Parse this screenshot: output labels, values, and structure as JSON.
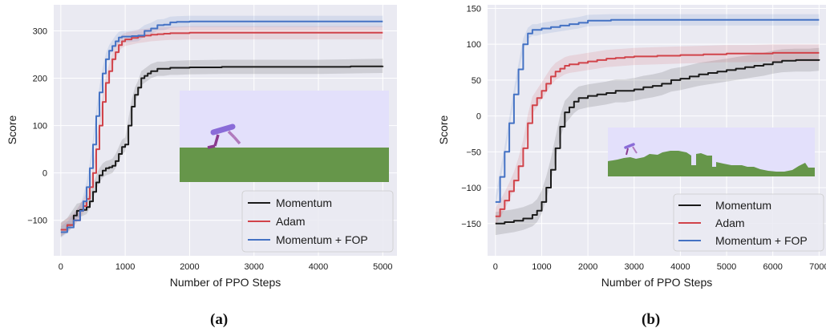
{
  "captions": {
    "a": "(a)",
    "b": "(b)"
  },
  "colors": {
    "plot_bg": "#eaeaf2",
    "grid": "#ffffff",
    "Momentum": "#1a1a1a",
    "Adam": "#d1434a",
    "Momentum + FOP": "#4472c4",
    "sky": "#e3e0fb",
    "ground": "#66964a",
    "walker_light": "#8a6cd8",
    "walker_dark": "#8a3a8e"
  },
  "chart_data": [
    {
      "id": "a",
      "type": "line",
      "title": "",
      "xlabel": "Number of PPO Steps",
      "ylabel": "Score",
      "xlim": [
        -110,
        5220
      ],
      "ylim": [
        -175,
        355
      ],
      "xticks": [
        0,
        1000,
        2000,
        3000,
        4000,
        5000
      ],
      "yticks": [
        -100,
        0,
        100,
        200,
        300
      ],
      "grid": true,
      "legend": "bottom-right",
      "inset": "bipedal walker on flat green terrain",
      "series": [
        {
          "name": "Momentum",
          "x": [
            0,
            100,
            200,
            250,
            300,
            400,
            450,
            500,
            550,
            600,
            650,
            700,
            750,
            800,
            850,
            900,
            950,
            1000,
            1050,
            1100,
            1150,
            1200,
            1250,
            1300,
            1350,
            1400,
            1500,
            1600,
            1700,
            1800,
            2000,
            2500,
            3000,
            3500,
            4000,
            4500,
            5000
          ],
          "y": [
            -120,
            -110,
            -90,
            -80,
            -78,
            -72,
            -60,
            -40,
            -20,
            -5,
            5,
            10,
            12,
            15,
            25,
            40,
            55,
            60,
            100,
            140,
            165,
            180,
            200,
            205,
            210,
            215,
            220,
            220,
            222,
            222,
            223,
            224,
            224,
            224,
            224,
            225,
            226
          ],
          "spread": 15
        },
        {
          "name": "Adam",
          "x": [
            0,
            100,
            200,
            300,
            350,
            400,
            450,
            500,
            550,
            600,
            650,
            700,
            750,
            800,
            850,
            900,
            950,
            1000,
            1100,
            1200,
            1300,
            1400,
            1500,
            1600,
            1700,
            1800,
            2000,
            2500,
            3000,
            3500,
            4000,
            4500,
            5000
          ],
          "y": [
            -120,
            -110,
            -100,
            -80,
            -70,
            -55,
            -30,
            0,
            50,
            100,
            150,
            190,
            215,
            240,
            255,
            270,
            278,
            282,
            285,
            288,
            290,
            292,
            293,
            294,
            295,
            295,
            296,
            296,
            296,
            296,
            296,
            296,
            296
          ],
          "spread": 14
        },
        {
          "name": "Momentum + FOP",
          "x": [
            0,
            100,
            200,
            300,
            350,
            400,
            450,
            500,
            550,
            600,
            650,
            700,
            750,
            800,
            850,
            900,
            950,
            1000,
            1100,
            1200,
            1300,
            1400,
            1500,
            1600,
            1700,
            1800,
            2000,
            2500,
            3000,
            3500,
            4000,
            4500,
            5000
          ],
          "y": [
            -125,
            -115,
            -100,
            -80,
            -60,
            -30,
            10,
            60,
            120,
            170,
            210,
            240,
            258,
            268,
            278,
            286,
            288,
            288,
            289,
            290,
            300,
            305,
            312,
            313,
            318,
            319,
            320,
            320,
            320,
            320,
            320,
            320,
            320
          ],
          "spread": 12
        }
      ]
    },
    {
      "id": "b",
      "type": "line",
      "title": "",
      "xlabel": "Number of PPO Steps",
      "ylabel": "Score",
      "xlim": [
        -170,
        7150
      ],
      "ylim": [
        -195,
        155
      ],
      "xticks": [
        0,
        1000,
        2000,
        3000,
        4000,
        5000,
        6000,
        7000
      ],
      "yticks": [
        -150,
        -100,
        -50,
        0,
        50,
        100,
        150
      ],
      "grid": true,
      "legend": "bottom-right",
      "inset": "bipedal walker on hilly green terrain with gaps",
      "series": [
        {
          "name": "Momentum",
          "x": [
            0,
            200,
            400,
            600,
            800,
            900,
            1000,
            1100,
            1200,
            1300,
            1400,
            1500,
            1600,
            1700,
            1800,
            2000,
            2200,
            2400,
            2600,
            2800,
            3000,
            3200,
            3400,
            3600,
            3800,
            4000,
            4200,
            4400,
            4600,
            4800,
            5000,
            5200,
            5400,
            5600,
            5800,
            6000,
            6200,
            6500,
            6800,
            7000
          ],
          "y": [
            -150,
            -148,
            -146,
            -143,
            -138,
            -132,
            -120,
            -100,
            -75,
            -45,
            -15,
            5,
            12,
            20,
            25,
            28,
            30,
            32,
            35,
            35,
            37,
            40,
            42,
            45,
            50,
            52,
            55,
            58,
            60,
            62,
            64,
            66,
            68,
            70,
            72,
            75,
            77,
            78,
            78,
            79
          ],
          "spread": 16
        },
        {
          "name": "Adam",
          "x": [
            0,
            100,
            200,
            300,
            400,
            500,
            600,
            700,
            800,
            900,
            1000,
            1100,
            1200,
            1300,
            1400,
            1500,
            1600,
            1800,
            2000,
            2200,
            2400,
            2600,
            2800,
            3000,
            3500,
            4000,
            4500,
            5000,
            5500,
            6000,
            6500,
            7000
          ],
          "y": [
            -140,
            -130,
            -118,
            -105,
            -90,
            -70,
            -45,
            -10,
            15,
            25,
            35,
            45,
            55,
            62,
            66,
            70,
            72,
            74,
            76,
            78,
            80,
            81,
            82,
            83,
            84,
            85,
            86,
            87,
            87,
            88,
            88,
            88
          ],
          "spread": 12
        },
        {
          "name": "Momentum + FOP",
          "x": [
            0,
            100,
            200,
            300,
            400,
            500,
            600,
            700,
            800,
            900,
            1000,
            1200,
            1400,
            1600,
            1800,
            2000,
            2500,
            3000,
            3500,
            4000,
            4500,
            5000,
            5500,
            6000,
            6500,
            7000
          ],
          "y": [
            -120,
            -85,
            -50,
            -10,
            30,
            65,
            100,
            115,
            120,
            120,
            122,
            124,
            126,
            128,
            130,
            133,
            134,
            134,
            134,
            134,
            134,
            134,
            134,
            134,
            134,
            134
          ],
          "spread": 8
        }
      ]
    }
  ]
}
